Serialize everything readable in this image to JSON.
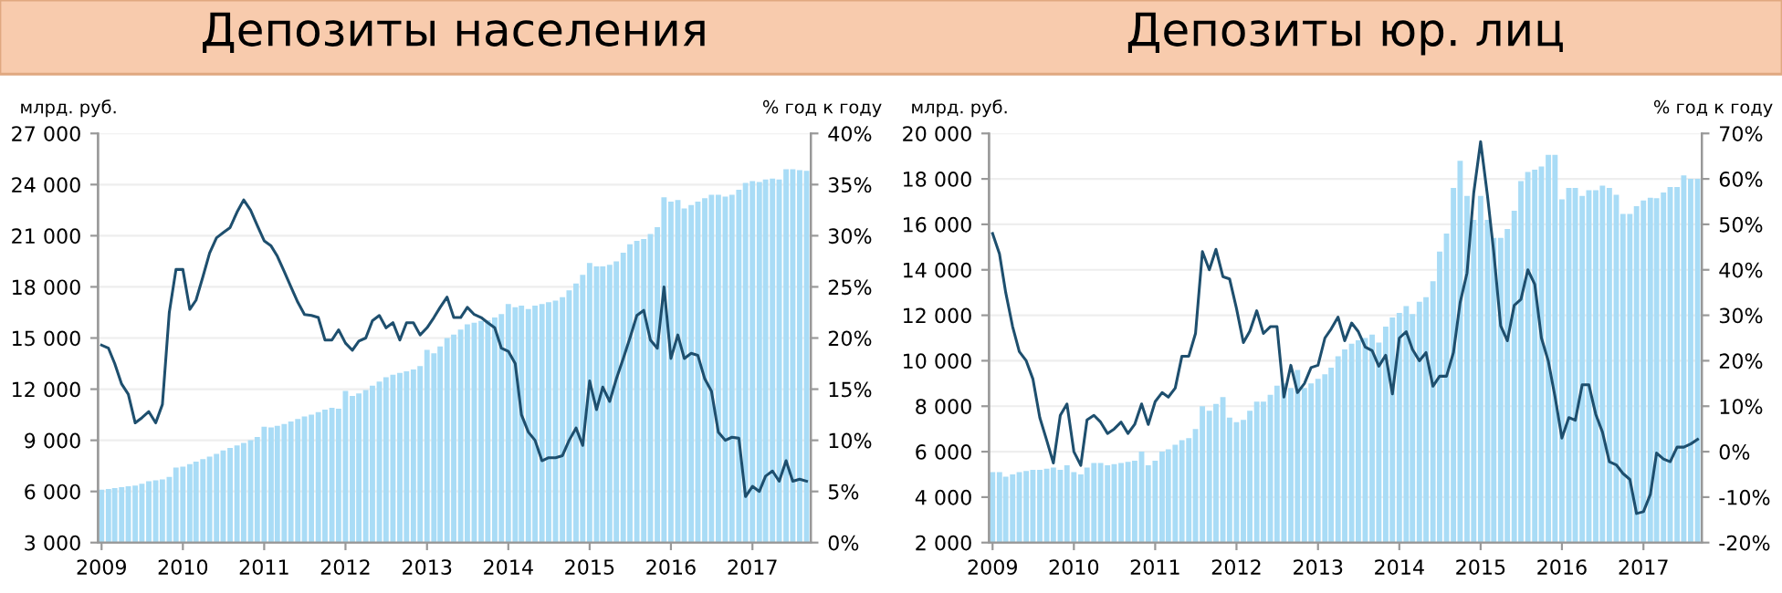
{
  "chart_data": [
    {
      "type": "bar",
      "title": "Депозиты населения",
      "ylabel": "млрд. руб.",
      "y2label": "% год к году",
      "grid": "y",
      "legend": false,
      "x": [
        "2009-01",
        "2009-02",
        "2009-03",
        "2009-04",
        "2009-05",
        "2009-06",
        "2009-07",
        "2009-08",
        "2009-09",
        "2009-10",
        "2009-11",
        "2009-12",
        "2010-01",
        "2010-02",
        "2010-03",
        "2010-04",
        "2010-05",
        "2010-06",
        "2010-07",
        "2010-08",
        "2010-09",
        "2010-10",
        "2010-11",
        "2010-12",
        "2011-01",
        "2011-02",
        "2011-03",
        "2011-04",
        "2011-05",
        "2011-06",
        "2011-07",
        "2011-08",
        "2011-09",
        "2011-10",
        "2011-11",
        "2011-12",
        "2012-01",
        "2012-02",
        "2012-03",
        "2012-04",
        "2012-05",
        "2012-06",
        "2012-07",
        "2012-08",
        "2012-09",
        "2012-10",
        "2012-11",
        "2012-12",
        "2013-01",
        "2013-02",
        "2013-03",
        "2013-04",
        "2013-05",
        "2013-06",
        "2013-07",
        "2013-08",
        "2013-09",
        "2013-10",
        "2013-11",
        "2013-12",
        "2014-01",
        "2014-02",
        "2014-03",
        "2014-04",
        "2014-05",
        "2014-06",
        "2014-07",
        "2014-08",
        "2014-09",
        "2014-10",
        "2014-11",
        "2014-12",
        "2015-01",
        "2015-02",
        "2015-03",
        "2015-04",
        "2015-05",
        "2015-06",
        "2015-07",
        "2015-08",
        "2015-09",
        "2015-10",
        "2015-11",
        "2015-12",
        "2016-01",
        "2016-02",
        "2016-03",
        "2016-04",
        "2016-05",
        "2016-06",
        "2016-07",
        "2016-08",
        "2016-09",
        "2016-10",
        "2016-11",
        "2016-12",
        "2017-01",
        "2017-02",
        "2017-03",
        "2017-04",
        "2017-05",
        "2017-06",
        "2017-07",
        "2017-08",
        "2017-09"
      ],
      "xlim": [
        "2008-12-16",
        "2017-09-20"
      ],
      "xticks": [
        {
          "value": "2009-01-01",
          "label": "2009"
        },
        {
          "value": "2010-01-01",
          "label": "2010"
        },
        {
          "value": "2011-01-01",
          "label": "2011"
        },
        {
          "value": "2012-01-01",
          "label": "2012"
        },
        {
          "value": "2013-01-01",
          "label": "2013"
        },
        {
          "value": "2014-01-01",
          "label": "2014"
        },
        {
          "value": "2015-01-01",
          "label": "2015"
        },
        {
          "value": "2016-01-01",
          "label": "2016"
        },
        {
          "value": "2017-01-01",
          "label": "2017"
        }
      ],
      "ylim": [
        3000,
        27000
      ],
      "yticks": [
        {
          "value": 3000,
          "label": "3 000"
        },
        {
          "value": 6000,
          "label": "6 000"
        },
        {
          "value": 9000,
          "label": "9 000"
        },
        {
          "value": 12000,
          "label": "12 000"
        },
        {
          "value": 15000,
          "label": "15 000"
        },
        {
          "value": 18000,
          "label": "18 000"
        },
        {
          "value": 21000,
          "label": "21 000"
        },
        {
          "value": 24000,
          "label": "24 000"
        },
        {
          "value": 27000,
          "label": "27 000"
        }
      ],
      "y2lim": [
        0,
        40
      ],
      "y2ticks": [
        {
          "value": 0,
          "label": "0%"
        },
        {
          "value": 5,
          "label": "5%"
        },
        {
          "value": 10,
          "label": "10%"
        },
        {
          "value": 15,
          "label": "15%"
        },
        {
          "value": 20,
          "label": "20%"
        },
        {
          "value": 25,
          "label": "25%"
        },
        {
          "value": 30,
          "label": "30%"
        },
        {
          "value": 35,
          "label": "35%"
        },
        {
          "value": 40,
          "label": "40%"
        }
      ],
      "series": [
        {
          "type": "bar",
          "color": "#a9dcf6",
          "values": [
            6100,
            6150,
            6200,
            6250,
            6300,
            6350,
            6450,
            6600,
            6650,
            6700,
            6850,
            7400,
            7450,
            7600,
            7750,
            7900,
            8050,
            8200,
            8400,
            8550,
            8700,
            8850,
            9000,
            9200,
            9800,
            9750,
            9850,
            9950,
            10100,
            10250,
            10400,
            10500,
            10650,
            10800,
            10900,
            10850,
            11900,
            11600,
            11750,
            11950,
            12200,
            12450,
            12700,
            12850,
            12950,
            13050,
            13150,
            13350,
            14300,
            14100,
            14500,
            15000,
            15200,
            15500,
            15800,
            15900,
            16000,
            16050,
            16200,
            16400,
            17000,
            16800,
            16900,
            16700,
            16900,
            17000,
            17100,
            17200,
            17400,
            17800,
            18200,
            18700,
            19400,
            19200,
            19200,
            19300,
            19500,
            20000,
            20500,
            20700,
            20800,
            21100,
            21500,
            23250,
            23000,
            23100,
            22600,
            22800,
            23000,
            23200,
            23400,
            23400,
            23300,
            23400,
            23700,
            24100,
            24200,
            24150,
            24300,
            24350,
            24300,
            24900,
            24900,
            24850,
            24800
          ]
        },
        {
          "type": "line",
          "axis": "y2",
          "color": "#1e4f6e",
          "values": [
            19.3,
            19.0,
            17.5,
            15.5,
            14.5,
            11.7,
            12.2,
            12.8,
            11.7,
            13.5,
            22.5,
            26.7,
            26.7,
            22.8,
            23.7,
            26.0,
            28.3,
            29.8,
            30.3,
            30.8,
            32.3,
            33.5,
            32.5,
            31.0,
            29.5,
            29.0,
            28.0,
            26.5,
            25.0,
            23.5,
            22.3,
            22.2,
            22.0,
            19.8,
            19.8,
            20.8,
            19.5,
            18.8,
            19.7,
            20.0,
            21.7,
            22.2,
            21.0,
            21.5,
            19.8,
            21.5,
            21.5,
            20.3,
            21.0,
            22.0,
            23.0,
            24.0,
            22.0,
            22.0,
            23.0,
            22.3,
            22.0,
            21.5,
            21.0,
            19.0,
            18.7,
            17.5,
            12.5,
            10.8,
            10.0,
            8.0,
            8.3,
            8.3,
            8.5,
            10.0,
            11.2,
            9.5,
            15.8,
            13.0,
            15.2,
            13.8,
            16.0,
            18.0,
            20.0,
            22.2,
            22.7,
            19.8,
            19.0,
            25.0,
            18.0,
            20.3,
            18.0,
            18.5,
            18.3,
            16.0,
            14.8,
            10.8,
            10.0,
            10.3,
            10.2,
            4.5,
            5.5,
            5.0,
            6.5,
            7.0,
            6.0,
            8.0,
            6.0,
            6.2,
            6.0
          ]
        }
      ]
    },
    {
      "type": "bar",
      "title": "Депозиты юр. лиц",
      "ylabel": "млрд. руб.",
      "y2label": "% год к году",
      "grid": "y",
      "legend": false,
      "x": [
        "2009-01",
        "2009-02",
        "2009-03",
        "2009-04",
        "2009-05",
        "2009-06",
        "2009-07",
        "2009-08",
        "2009-09",
        "2009-10",
        "2009-11",
        "2009-12",
        "2010-01",
        "2010-02",
        "2010-03",
        "2010-04",
        "2010-05",
        "2010-06",
        "2010-07",
        "2010-08",
        "2010-09",
        "2010-10",
        "2010-11",
        "2010-12",
        "2011-01",
        "2011-02",
        "2011-03",
        "2011-04",
        "2011-05",
        "2011-06",
        "2011-07",
        "2011-08",
        "2011-09",
        "2011-10",
        "2011-11",
        "2011-12",
        "2012-01",
        "2012-02",
        "2012-03",
        "2012-04",
        "2012-05",
        "2012-06",
        "2012-07",
        "2012-08",
        "2012-09",
        "2012-10",
        "2012-11",
        "2012-12",
        "2013-01",
        "2013-02",
        "2013-03",
        "2013-04",
        "2013-05",
        "2013-06",
        "2013-07",
        "2013-08",
        "2013-09",
        "2013-10",
        "2013-11",
        "2013-12",
        "2014-01",
        "2014-02",
        "2014-03",
        "2014-04",
        "2014-05",
        "2014-06",
        "2014-07",
        "2014-08",
        "2014-09",
        "2014-10",
        "2014-11",
        "2014-12",
        "2015-01",
        "2015-02",
        "2015-03",
        "2015-04",
        "2015-05",
        "2015-06",
        "2015-07",
        "2015-08",
        "2015-09",
        "2015-10",
        "2015-11",
        "2015-12",
        "2016-01",
        "2016-02",
        "2016-03",
        "2016-04",
        "2016-05",
        "2016-06",
        "2016-07",
        "2016-08",
        "2016-09",
        "2016-10",
        "2016-11",
        "2016-12",
        "2017-01",
        "2017-02",
        "2017-03",
        "2017-04",
        "2017-05",
        "2017-06",
        "2017-07",
        "2017-08",
        "2017-09"
      ],
      "xlim": [
        "2008-12-16",
        "2017-09-20"
      ],
      "xticks": [
        {
          "value": "2009-01-01",
          "label": "2009"
        },
        {
          "value": "2010-01-01",
          "label": "2010"
        },
        {
          "value": "2011-01-01",
          "label": "2011"
        },
        {
          "value": "2012-01-01",
          "label": "2012"
        },
        {
          "value": "2013-01-01",
          "label": "2013"
        },
        {
          "value": "2014-01-01",
          "label": "2014"
        },
        {
          "value": "2015-01-01",
          "label": "2015"
        },
        {
          "value": "2016-01-01",
          "label": "2016"
        },
        {
          "value": "2017-01-01",
          "label": "2017"
        }
      ],
      "ylim": [
        2000,
        20000
      ],
      "yticks": [
        {
          "value": 2000,
          "label": "2 000"
        },
        {
          "value": 4000,
          "label": "4 000"
        },
        {
          "value": 6000,
          "label": "6 000"
        },
        {
          "value": 8000,
          "label": "8 000"
        },
        {
          "value": 10000,
          "label": "10 000"
        },
        {
          "value": 12000,
          "label": "12 000"
        },
        {
          "value": 14000,
          "label": "14 000"
        },
        {
          "value": 16000,
          "label": "16 000"
        },
        {
          "value": 18000,
          "label": "18 000"
        },
        {
          "value": 20000,
          "label": "20 000"
        }
      ],
      "y2lim": [
        -20,
        70
      ],
      "y2ticks": [
        {
          "value": -20,
          "label": "-20%"
        },
        {
          "value": -10,
          "label": "-10%"
        },
        {
          "value": 0,
          "label": "0%"
        },
        {
          "value": 10,
          "label": "10%"
        },
        {
          "value": 20,
          "label": "20%"
        },
        {
          "value": 30,
          "label": "30%"
        },
        {
          "value": 40,
          "label": "40%"
        },
        {
          "value": 50,
          "label": "50%"
        },
        {
          "value": 60,
          "label": "60%"
        },
        {
          "value": 70,
          "label": "70%"
        }
      ],
      "series": [
        {
          "type": "bar",
          "color": "#a9dcf6",
          "values": [
            5100,
            5100,
            4900,
            5000,
            5100,
            5150,
            5200,
            5200,
            5250,
            5300,
            5200,
            5400,
            5100,
            5000,
            5300,
            5500,
            5500,
            5400,
            5450,
            5500,
            5550,
            5600,
            6000,
            5400,
            5600,
            6000,
            6100,
            6300,
            6500,
            6600,
            7000,
            8000,
            7800,
            8100,
            8400,
            7500,
            7300,
            7400,
            7800,
            8200,
            8200,
            8500,
            8900,
            9000,
            8800,
            9600,
            8800,
            9000,
            9200,
            9400,
            9700,
            10200,
            10500,
            10750,
            10900,
            11000,
            11150,
            10800,
            11500,
            11900,
            12100,
            12400,
            12050,
            12600,
            12800,
            13500,
            14800,
            15600,
            17600,
            18800,
            17250,
            16200,
            17250,
            16200,
            15400,
            15400,
            15800,
            16600,
            17900,
            18300,
            18400,
            18550,
            19060,
            19060,
            17100,
            17600,
            17600,
            17250,
            17500,
            17500,
            17700,
            17600,
            17300,
            16460,
            16460,
            16800,
            17050,
            17170,
            17150,
            17400,
            17640,
            17640,
            18150,
            18000,
            18000
          ]
        },
        {
          "type": "line",
          "axis": "y2",
          "color": "#1e4f6e",
          "values": [
            48,
            43.5,
            35,
            27.5,
            22,
            20,
            16,
            7.5,
            2.5,
            -2.5,
            8,
            10.5,
            0,
            -3,
            7,
            8,
            6.5,
            4,
            5,
            6.5,
            4,
            6,
            10.5,
            6,
            11,
            13,
            12,
            14,
            21,
            21,
            26,
            44,
            40,
            44.5,
            38.5,
            38,
            31.5,
            24,
            26.5,
            31,
            26,
            27.5,
            27.5,
            12,
            19,
            13,
            15,
            18.5,
            19,
            25,
            27,
            29.6,
            24.4,
            28.3,
            26.4,
            23,
            22.2,
            18.8,
            21.2,
            12.7,
            25,
            26.4,
            22.5,
            20,
            21.8,
            14.4,
            16.6,
            16.6,
            21.8,
            32.8,
            39.3,
            56.9,
            68.2,
            56.2,
            43.9,
            27.7,
            24.4,
            32.2,
            33.5,
            40,
            36.8,
            25,
            19.9,
            12.1,
            3.0,
            7.5,
            6.9,
            14.7,
            14.7,
            8.2,
            4.3,
            -2.2,
            -2.9,
            -4.8,
            -6.1,
            -13.6,
            -13.2,
            -9.4,
            -0.3,
            -1.6,
            -2.2,
            1.0,
            1.0,
            1.7,
            2.7
          ]
        }
      ]
    }
  ]
}
